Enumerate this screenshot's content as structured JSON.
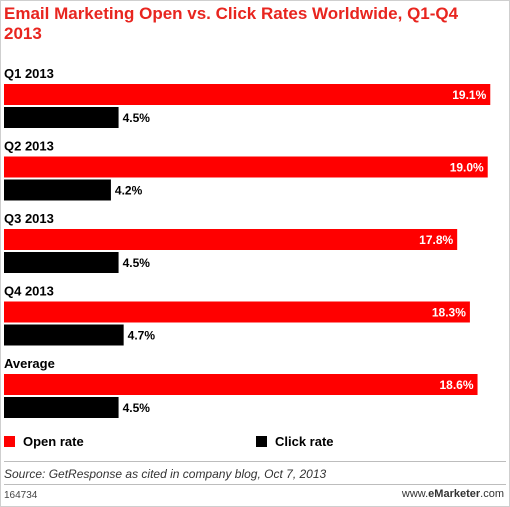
{
  "chart_data": {
    "type": "bar",
    "orientation": "horizontal",
    "title": "Email Marketing Open vs. Click Rates Worldwide, Q1-Q4 2013",
    "categories": [
      "Q1 2013",
      "Q2 2013",
      "Q3 2013",
      "Q4 2013",
      "Average"
    ],
    "series": [
      {
        "name": "Open rate",
        "color": "#ff0000",
        "values": [
          19.1,
          19.0,
          17.8,
          18.3,
          18.6
        ],
        "labels": [
          "19.1%",
          "19.0%",
          "17.8%",
          "18.3%",
          "18.6%"
        ]
      },
      {
        "name": "Click rate",
        "color": "#000000",
        "values": [
          4.5,
          4.2,
          4.5,
          4.7,
          4.5
        ],
        "labels": [
          "4.5%",
          "4.2%",
          "4.5%",
          "4.7%",
          "4.5%"
        ]
      }
    ],
    "xlim": [
      0,
      19.6
    ],
    "grid": false,
    "legend_position": "bottom"
  },
  "source": "Source: GetResponse as cited in company blog, Oct 7, 2013",
  "footer": {
    "chart_id": "164734",
    "brand_prefix": "www.",
    "brand_bold": "eMarketer",
    "brand_suffix": ".com"
  }
}
